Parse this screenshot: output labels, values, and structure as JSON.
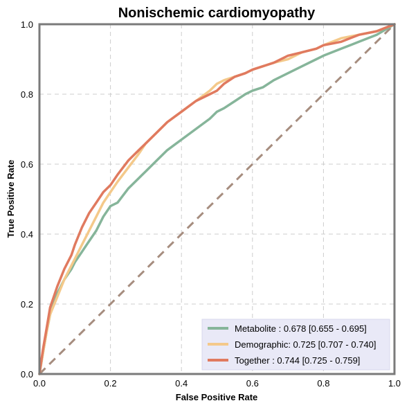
{
  "chart_data": {
    "type": "line",
    "title": "Nonischemic cardiomyopathy",
    "xlabel": "False Positive Rate",
    "ylabel": "True Positive Rate",
    "xlim": [
      0,
      1
    ],
    "ylim": [
      0,
      1
    ],
    "x_ticks": [
      "0.0",
      "0.2",
      "0.4",
      "0.6",
      "0.8",
      "1.0"
    ],
    "y_ticks": [
      "0.0",
      "0.2",
      "0.4",
      "0.6",
      "0.8",
      "1.0"
    ],
    "grid": true,
    "legend_position": "bottom-right",
    "reference_line": {
      "x": [
        0,
        1
      ],
      "y": [
        0,
        1
      ],
      "color": "#a68d7f",
      "style": "dashed"
    },
    "series": [
      {
        "name": "Metabolite",
        "legend_text": "Metabolite      : 0.678 [0.655 - 0.695]",
        "color": "#86b59a",
        "x": [
          0,
          0.01,
          0.02,
          0.03,
          0.05,
          0.07,
          0.09,
          0.1,
          0.12,
          0.14,
          0.16,
          0.18,
          0.2,
          0.22,
          0.25,
          0.28,
          0.3,
          0.33,
          0.36,
          0.4,
          0.44,
          0.48,
          0.5,
          0.52,
          0.55,
          0.58,
          0.6,
          0.63,
          0.66,
          0.7,
          0.74,
          0.78,
          0.8,
          0.85,
          0.9,
          0.95,
          1.0
        ],
        "y": [
          0,
          0.06,
          0.12,
          0.17,
          0.23,
          0.27,
          0.3,
          0.32,
          0.35,
          0.38,
          0.41,
          0.45,
          0.48,
          0.49,
          0.53,
          0.56,
          0.58,
          0.61,
          0.64,
          0.67,
          0.7,
          0.73,
          0.75,
          0.76,
          0.78,
          0.8,
          0.81,
          0.82,
          0.84,
          0.86,
          0.88,
          0.9,
          0.91,
          0.93,
          0.95,
          0.97,
          1.0
        ]
      },
      {
        "name": "Demographic",
        "legend_text": "Demographic: 0.725 [0.707 - 0.740]",
        "color": "#f4c98a",
        "x": [
          0,
          0.01,
          0.02,
          0.03,
          0.05,
          0.07,
          0.09,
          0.1,
          0.12,
          0.14,
          0.16,
          0.18,
          0.2,
          0.22,
          0.25,
          0.28,
          0.3,
          0.33,
          0.36,
          0.4,
          0.44,
          0.48,
          0.5,
          0.52,
          0.55,
          0.58,
          0.6,
          0.63,
          0.66,
          0.7,
          0.74,
          0.78,
          0.8,
          0.85,
          0.9,
          0.95,
          1.0
        ],
        "y": [
          0,
          0.06,
          0.12,
          0.17,
          0.22,
          0.27,
          0.31,
          0.33,
          0.37,
          0.41,
          0.45,
          0.49,
          0.52,
          0.55,
          0.59,
          0.63,
          0.66,
          0.69,
          0.72,
          0.75,
          0.78,
          0.81,
          0.83,
          0.84,
          0.85,
          0.86,
          0.87,
          0.88,
          0.89,
          0.9,
          0.92,
          0.93,
          0.94,
          0.96,
          0.97,
          0.98,
          1.0
        ]
      },
      {
        "name": "Together",
        "legend_text": "Together       : 0.744 [0.725 - 0.759]",
        "color": "#e07a5f",
        "x": [
          0,
          0.01,
          0.02,
          0.03,
          0.05,
          0.07,
          0.09,
          0.1,
          0.12,
          0.14,
          0.16,
          0.18,
          0.2,
          0.22,
          0.25,
          0.28,
          0.3,
          0.33,
          0.36,
          0.4,
          0.44,
          0.48,
          0.5,
          0.52,
          0.55,
          0.58,
          0.6,
          0.63,
          0.66,
          0.7,
          0.74,
          0.78,
          0.8,
          0.85,
          0.9,
          0.95,
          1.0
        ],
        "y": [
          0,
          0.07,
          0.13,
          0.19,
          0.25,
          0.3,
          0.34,
          0.37,
          0.42,
          0.46,
          0.49,
          0.52,
          0.54,
          0.57,
          0.61,
          0.64,
          0.66,
          0.69,
          0.72,
          0.75,
          0.78,
          0.8,
          0.81,
          0.83,
          0.85,
          0.86,
          0.87,
          0.88,
          0.89,
          0.91,
          0.92,
          0.93,
          0.94,
          0.95,
          0.97,
          0.98,
          1.0
        ]
      }
    ]
  }
}
